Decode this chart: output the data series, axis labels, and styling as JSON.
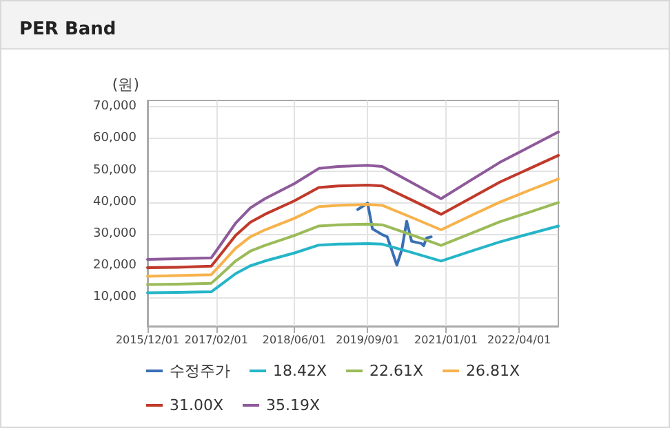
{
  "chart_data": {
    "type": "line",
    "title": "PER Band",
    "ylabel": "(원)",
    "marker": "none",
    "line_style": "solid",
    "grid": true,
    "legend": "bottom",
    "xlim": [
      "2015-12-01",
      "2022-12-01"
    ],
    "xticks": [
      {
        "value": "2015-12-01",
        "label": "2015/12/01"
      },
      {
        "value": "2017-02-01",
        "label": "2017/02/01"
      },
      {
        "value": "2018-06-01",
        "label": "2018/06/01"
      },
      {
        "value": "2019-09-01",
        "label": "2019/09/01"
      },
      {
        "value": "2021-01-01",
        "label": "2021/01/01"
      },
      {
        "value": "2022-04-01",
        "label": "2022/04/01"
      }
    ],
    "ylim": [
      1000,
      72000
    ],
    "yticks": [
      {
        "value": 10000,
        "label": "10,000"
      },
      {
        "value": 20000,
        "label": "20,000"
      },
      {
        "value": 30000,
        "label": "30,000"
      },
      {
        "value": 40000,
        "label": "40,000"
      },
      {
        "value": 50000,
        "label": "50,000"
      },
      {
        "value": 60000,
        "label": "60,000"
      },
      {
        "value": 70000,
        "label": "70,000"
      }
    ],
    "x": [
      "2015-12-01",
      "2016-06-01",
      "2017-01-01",
      "2017-03-01",
      "2017-06-01",
      "2017-09-01",
      "2017-12-01",
      "2018-06-01",
      "2018-11-01",
      "2019-03-01",
      "2019-09-01",
      "2019-12-01",
      "2020-06-01",
      "2020-12-01",
      "2021-06-01",
      "2021-12-01",
      "2022-06-01",
      "2022-12-01"
    ],
    "series": [
      {
        "name": "수정주가",
        "color": "#3a6fb5",
        "x": [
          "2019-07-01",
          "2019-09-01",
          "2019-10-01",
          "2019-12-01",
          "2020-01-01",
          "2020-03-01",
          "2020-04-01",
          "2020-05-01",
          "2020-06-01",
          "2020-08-01",
          "2020-08-15",
          "2020-09-01",
          "2020-10-01"
        ],
        "values": [
          37700,
          39700,
          31600,
          29800,
          29100,
          20200,
          25100,
          34000,
          27700,
          27000,
          26300,
          28700,
          29100
        ]
      },
      {
        "name": "18.42X",
        "color": "#25b5c8",
        "values": [
          11500,
          11600,
          11800,
          14000,
          17500,
          20000,
          21500,
          24000,
          26500,
          26800,
          27000,
          26800,
          24200,
          21500,
          24500,
          27500,
          30000,
          32500
        ]
      },
      {
        "name": "22.61X",
        "color": "#9bbb59",
        "values": [
          14100,
          14200,
          14500,
          17200,
          21500,
          24600,
          26400,
          29500,
          32500,
          32900,
          33100,
          32900,
          29700,
          26400,
          30100,
          33800,
          36800,
          39900
        ]
      },
      {
        "name": "26.81X",
        "color": "#f7b24c",
        "values": [
          16700,
          16900,
          17200,
          20400,
          25500,
          29100,
          31300,
          34900,
          38600,
          39000,
          39300,
          39000,
          35200,
          31300,
          35700,
          40000,
          43700,
          47300
        ]
      },
      {
        "name": "31.00X",
        "color": "#c0392b",
        "values": [
          19400,
          19500,
          19900,
          23600,
          29500,
          33700,
          36200,
          40400,
          44600,
          45100,
          45400,
          45100,
          40700,
          36200,
          41200,
          46300,
          50500,
          54700
        ]
      },
      {
        "name": "35.19X",
        "color": "#8e5a9b",
        "values": [
          22000,
          22200,
          22500,
          26700,
          33400,
          38200,
          41100,
          45800,
          50600,
          51200,
          51600,
          51200,
          46200,
          41100,
          46800,
          52500,
          57300,
          62100
        ]
      }
    ]
  }
}
